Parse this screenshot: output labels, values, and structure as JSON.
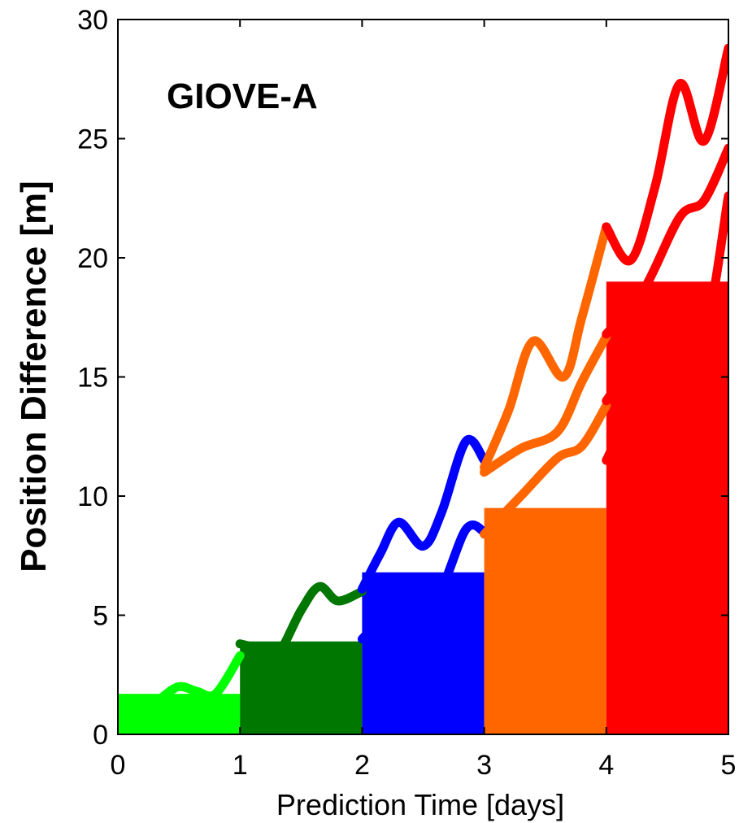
{
  "chart_data": {
    "type": "line",
    "annotation": "GIOVE-A",
    "xlabel": "Prediction Time [days]",
    "ylabel": "Position Difference [m]",
    "xlim": [
      0,
      5
    ],
    "ylim": [
      0,
      30
    ],
    "xticks": [
      0,
      1,
      2,
      3,
      4,
      5
    ],
    "yticks": [
      0,
      5,
      10,
      15,
      20,
      25,
      30
    ],
    "grid": false,
    "colors": {
      "day1": "#00ff00",
      "day2": "#007700",
      "day3": "#0000ff",
      "day4": "#ff6600",
      "day5": "#ff0000"
    },
    "series": [
      {
        "color": "#00ff00",
        "x": [
          0,
          0.2,
          0.35,
          0.5,
          0.65,
          0.8,
          1.0
        ],
        "y": [
          0.9,
          0.8,
          1.5,
          2.0,
          1.8,
          1.7,
          3.3
        ]
      },
      {
        "color": "#007700",
        "x": [
          1.0,
          1.15,
          1.3,
          1.5,
          1.65,
          1.8,
          2.0
        ],
        "y": [
          3.8,
          3.6,
          3.3,
          5.2,
          6.2,
          5.6,
          6.0
        ]
      },
      {
        "color": "#0000ff",
        "x": [
          2.0,
          2.15,
          2.3,
          2.5,
          2.65,
          2.85,
          3.0
        ],
        "y": [
          6.1,
          7.6,
          8.9,
          7.9,
          9.3,
          12.3,
          11.5
        ]
      },
      {
        "color": "#ff6600",
        "x": [
          3.0,
          3.2,
          3.4,
          3.65,
          3.8,
          4.0
        ],
        "y": [
          11.2,
          13.6,
          16.5,
          15.0,
          17.5,
          21.3
        ]
      },
      {
        "color": "#ff0000",
        "x": [
          4.0,
          4.2,
          4.4,
          4.6,
          4.8,
          5.0
        ],
        "y": [
          21.3,
          19.9,
          23.0,
          27.3,
          24.9,
          28.8
        ]
      },
      {
        "color": "#0000ff",
        "x": [
          2.0,
          2.3,
          2.6,
          2.85,
          3.0
        ],
        "y": [
          4.0,
          5.5,
          5.7,
          8.6,
          8.5
        ]
      },
      {
        "color": "#ff6600",
        "x": [
          3.0,
          3.3,
          3.6,
          3.8,
          4.0
        ],
        "y": [
          8.4,
          10.0,
          11.6,
          12.1,
          13.8
        ]
      },
      {
        "color": "#ff6600",
        "x": [
          3.0,
          3.3,
          3.6,
          3.8,
          4.0
        ],
        "y": [
          11.0,
          12.0,
          12.7,
          14.8,
          16.7
        ]
      },
      {
        "color": "#ff0000",
        "x": [
          4.0,
          4.3,
          4.6,
          4.8,
          5.0
        ],
        "y": [
          14.0,
          16.2,
          18.5,
          16.8,
          22.6
        ]
      },
      {
        "color": "#ff0000",
        "x": [
          4.0,
          4.3,
          4.6,
          4.8,
          5.0
        ],
        "y": [
          16.8,
          18.6,
          21.7,
          22.4,
          24.6
        ]
      },
      {
        "color": "#ff0000",
        "x": [
          4.0,
          4.3,
          4.6,
          4.8,
          5.0
        ],
        "y": [
          11.5,
          14.5,
          15.5,
          16.0,
          16.2
        ]
      }
    ],
    "bands": [
      {
        "color": "#00ff00",
        "x": [
          0.0,
          1.0
        ],
        "y": [
          0.0,
          1.7
        ]
      },
      {
        "color": "#007700",
        "x": [
          1.0,
          2.0
        ],
        "y": [
          0.0,
          3.9
        ]
      },
      {
        "color": "#0000ff",
        "x": [
          2.0,
          3.0
        ],
        "y": [
          0.0,
          6.8
        ]
      },
      {
        "color": "#ff6600",
        "x": [
          3.0,
          4.0
        ],
        "y": [
          0.0,
          9.5
        ]
      },
      {
        "color": "#ff0000",
        "x": [
          4.0,
          5.0
        ],
        "y": [
          0.0,
          19.0
        ]
      }
    ]
  }
}
